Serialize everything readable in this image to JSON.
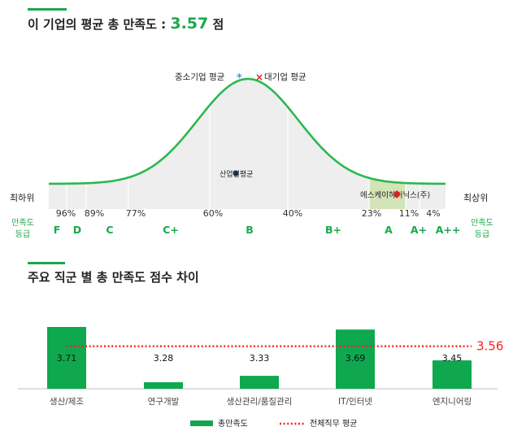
{
  "section1": {
    "title_prefix": "이 기업의 평균 총 만족도 :",
    "score": "3.57",
    "score_unit": "점"
  },
  "section2": {
    "title": "주요 직군 별 총 만족도 점수 차이"
  },
  "colors": {
    "accent": "#1ba84d",
    "bar": "#0fa84e",
    "line": "#ff1f1f",
    "curve": "#2bb84f",
    "band": "#d3e4b7"
  },
  "chart_data": [
    {
      "type": "area",
      "title": "",
      "legend": {
        "sme_label": "중소기업 평균",
        "sme_marker": "*",
        "large_label": "대기업 평균",
        "large_marker": "×"
      },
      "industry_avg_label": "산업별평균",
      "company_label": "에스케이하이닉스(주)",
      "end_labels": {
        "left": "최하위",
        "right": "최상위"
      },
      "grade_axis_label": "만족도 등급",
      "percentiles": [
        "96%",
        "89%",
        "77%",
        "60%",
        "40%",
        "23%",
        "11%",
        "4%"
      ],
      "grades": [
        "F",
        "D",
        "C",
        "C+",
        "B",
        "B+",
        "A",
        "A+",
        "A++"
      ],
      "company_grade": "A"
    },
    {
      "type": "bar",
      "categories": [
        "생산/제조",
        "연구개발",
        "생산관리/품질관리",
        "IT/인터넷",
        "엔지니어링"
      ],
      "series": [
        {
          "name": "총만족도",
          "values": [
            3.71,
            3.28,
            3.33,
            3.69,
            3.45
          ]
        }
      ],
      "value_labels": [
        "3.71",
        "3.28",
        "3.33",
        "3.69",
        "3.45"
      ],
      "reference_line": {
        "name": "전체직무 평균",
        "value": 3.56,
        "label": "3.56"
      },
      "grid": false,
      "legend_position": "bottom"
    }
  ]
}
